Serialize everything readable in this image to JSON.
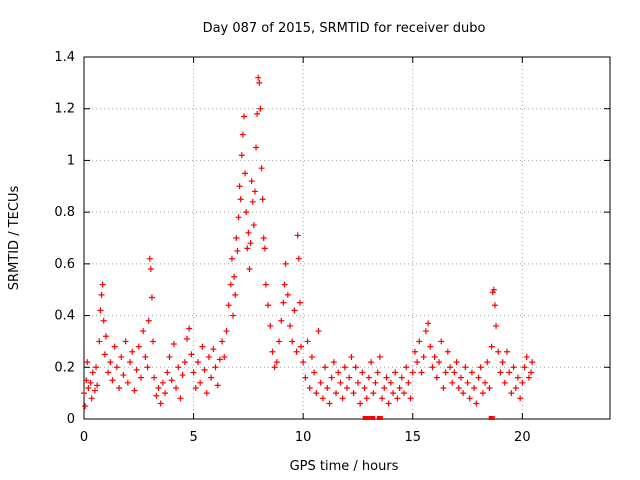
{
  "chart_data": {
    "type": "scatter",
    "title": "Day 087 of 2015, SRMTID for receiver dubo",
    "xlabel": "GPS time / hours",
    "ylabel": "SRMTID / TECUs",
    "xlim": [
      0,
      24
    ],
    "ylim": [
      0,
      1.4
    ],
    "xticks": [
      0,
      5,
      10,
      15,
      20
    ],
    "xtick_labels": [
      "0",
      "5",
      "10",
      "15",
      "20"
    ],
    "yticks": [
      0,
      0.2,
      0.4,
      0.6,
      0.8,
      1.0,
      1.2,
      1.4
    ],
    "ytick_labels": [
      "0",
      "0.2",
      "0.4",
      "0.6",
      "0.8",
      "1",
      "1.2",
      "1.4"
    ],
    "grid": true,
    "marker": "+",
    "series_color": "#ff0000",
    "series": [
      {
        "name": "SRMTID",
        "points": [
          [
            0.0,
            0.1
          ],
          [
            0.05,
            0.05
          ],
          [
            0.1,
            0.15
          ],
          [
            0.15,
            0.22
          ],
          [
            0.2,
            0.12
          ],
          [
            0.3,
            0.14
          ],
          [
            0.35,
            0.08
          ],
          [
            0.4,
            0.18
          ],
          [
            0.5,
            0.11
          ],
          [
            0.55,
            0.2
          ],
          [
            0.6,
            0.13
          ],
          [
            0.7,
            0.3
          ],
          [
            0.75,
            0.42
          ],
          [
            0.8,
            0.48
          ],
          [
            0.85,
            0.52
          ],
          [
            0.9,
            0.38
          ],
          [
            0.95,
            0.25
          ],
          [
            1.0,
            0.32
          ],
          [
            1.1,
            0.18
          ],
          [
            1.2,
            0.22
          ],
          [
            1.3,
            0.15
          ],
          [
            1.4,
            0.28
          ],
          [
            1.5,
            0.2
          ],
          [
            1.6,
            0.12
          ],
          [
            1.7,
            0.24
          ],
          [
            1.8,
            0.17
          ],
          [
            1.9,
            0.3
          ],
          [
            2.0,
            0.14
          ],
          [
            2.1,
            0.22
          ],
          [
            2.2,
            0.26
          ],
          [
            2.3,
            0.11
          ],
          [
            2.4,
            0.19
          ],
          [
            2.5,
            0.28
          ],
          [
            2.6,
            0.16
          ],
          [
            2.7,
            0.34
          ],
          [
            2.8,
            0.24
          ],
          [
            2.9,
            0.2
          ],
          [
            2.95,
            0.38
          ],
          [
            3.0,
            0.62
          ],
          [
            3.05,
            0.58
          ],
          [
            3.1,
            0.47
          ],
          [
            3.15,
            0.3
          ],
          [
            3.2,
            0.16
          ],
          [
            3.3,
            0.09
          ],
          [
            3.4,
            0.12
          ],
          [
            3.5,
            0.06
          ],
          [
            3.6,
            0.14
          ],
          [
            3.7,
            0.1
          ],
          [
            3.8,
            0.18
          ],
          [
            3.9,
            0.24
          ],
          [
            4.0,
            0.15
          ],
          [
            4.1,
            0.29
          ],
          [
            4.2,
            0.12
          ],
          [
            4.3,
            0.2
          ],
          [
            4.4,
            0.08
          ],
          [
            4.5,
            0.17
          ],
          [
            4.6,
            0.22
          ],
          [
            4.7,
            0.31
          ],
          [
            4.8,
            0.35
          ],
          [
            4.9,
            0.25
          ],
          [
            5.0,
            0.18
          ],
          [
            5.1,
            0.12
          ],
          [
            5.2,
            0.22
          ],
          [
            5.3,
            0.14
          ],
          [
            5.4,
            0.28
          ],
          [
            5.5,
            0.19
          ],
          [
            5.6,
            0.1
          ],
          [
            5.7,
            0.24
          ],
          [
            5.8,
            0.16
          ],
          [
            5.9,
            0.27
          ],
          [
            6.0,
            0.2
          ],
          [
            6.1,
            0.13
          ],
          [
            6.2,
            0.23
          ],
          [
            6.3,
            0.3
          ],
          [
            6.4,
            0.24
          ],
          [
            6.5,
            0.34
          ],
          [
            6.6,
            0.44
          ],
          [
            6.7,
            0.52
          ],
          [
            6.75,
            0.62
          ],
          [
            6.8,
            0.4
          ],
          [
            6.85,
            0.55
          ],
          [
            6.9,
            0.48
          ],
          [
            6.95,
            0.7
          ],
          [
            7.0,
            0.65
          ],
          [
            7.05,
            0.78
          ],
          [
            7.1,
            0.9
          ],
          [
            7.15,
            0.85
          ],
          [
            7.2,
            1.02
          ],
          [
            7.25,
            1.1
          ],
          [
            7.3,
            1.17
          ],
          [
            7.35,
            0.95
          ],
          [
            7.4,
            0.8
          ],
          [
            7.45,
            0.66
          ],
          [
            7.5,
            0.72
          ],
          [
            7.55,
            0.58
          ],
          [
            7.6,
            0.68
          ],
          [
            7.65,
            0.92
          ],
          [
            7.7,
            0.84
          ],
          [
            7.75,
            0.75
          ],
          [
            7.8,
            0.88
          ],
          [
            7.85,
            1.05
          ],
          [
            7.9,
            1.18
          ],
          [
            7.95,
            1.32
          ],
          [
            8.0,
            1.3
          ],
          [
            8.05,
            1.2
          ],
          [
            8.1,
            0.97
          ],
          [
            8.15,
            0.85
          ],
          [
            8.2,
            0.7
          ],
          [
            8.25,
            0.66
          ],
          [
            8.3,
            0.52
          ],
          [
            8.4,
            0.44
          ],
          [
            8.5,
            0.36
          ],
          [
            8.6,
            0.26
          ],
          [
            8.7,
            0.2
          ],
          [
            8.8,
            0.22
          ],
          [
            8.9,
            0.3
          ],
          [
            9.0,
            0.38
          ],
          [
            9.1,
            0.45
          ],
          [
            9.15,
            0.52
          ],
          [
            9.2,
            0.6
          ],
          [
            9.3,
            0.48
          ],
          [
            9.4,
            0.36
          ],
          [
            9.5,
            0.3
          ],
          [
            9.6,
            0.42
          ],
          [
            9.7,
            0.26
          ],
          [
            9.75,
            0.71
          ],
          [
            9.8,
            0.62
          ],
          [
            9.85,
            0.45
          ],
          [
            9.9,
            0.28
          ],
          [
            10.0,
            0.22
          ],
          [
            10.1,
            0.16
          ],
          [
            10.2,
            0.3
          ],
          [
            10.3,
            0.12
          ],
          [
            10.4,
            0.24
          ],
          [
            10.5,
            0.18
          ],
          [
            10.6,
            0.1
          ],
          [
            10.7,
            0.34
          ],
          [
            10.8,
            0.14
          ],
          [
            10.9,
            0.08
          ],
          [
            11.0,
            0.2
          ],
          [
            11.1,
            0.12
          ],
          [
            11.2,
            0.06
          ],
          [
            11.3,
            0.16
          ],
          [
            11.4,
            0.22
          ],
          [
            11.5,
            0.1
          ],
          [
            11.6,
            0.18
          ],
          [
            11.7,
            0.14
          ],
          [
            11.8,
            0.08
          ],
          [
            11.9,
            0.2
          ],
          [
            12.0,
            0.12
          ],
          [
            12.1,
            0.16
          ],
          [
            12.2,
            0.24
          ],
          [
            12.3,
            0.1
          ],
          [
            12.4,
            0.2
          ],
          [
            12.5,
            0.14
          ],
          [
            12.6,
            0.06
          ],
          [
            12.7,
            0.18
          ],
          [
            12.8,
            0.12
          ],
          [
            12.9,
            0.08
          ],
          [
            13.0,
            0.16
          ],
          [
            13.1,
            0.22
          ],
          [
            13.2,
            0.1
          ],
          [
            13.3,
            0.14
          ],
          [
            13.4,
            0.18
          ],
          [
            13.5,
            0.24
          ],
          [
            13.6,
            0.08
          ],
          [
            13.7,
            0.12
          ],
          [
            13.8,
            0.16
          ],
          [
            13.9,
            0.06
          ],
          [
            14.0,
            0.14
          ],
          [
            14.1,
            0.1
          ],
          [
            14.2,
            0.18
          ],
          [
            14.3,
            0.08
          ],
          [
            14.4,
            0.12
          ],
          [
            14.5,
            0.16
          ],
          [
            14.6,
            0.1
          ],
          [
            14.7,
            0.2
          ],
          [
            14.8,
            0.14
          ],
          [
            14.9,
            0.08
          ],
          [
            15.0,
            0.18
          ],
          [
            15.1,
            0.26
          ],
          [
            15.2,
            0.22
          ],
          [
            15.3,
            0.3
          ],
          [
            15.4,
            0.18
          ],
          [
            15.5,
            0.24
          ],
          [
            15.6,
            0.34
          ],
          [
            15.7,
            0.37
          ],
          [
            15.8,
            0.28
          ],
          [
            15.9,
            0.2
          ],
          [
            16.0,
            0.24
          ],
          [
            16.1,
            0.16
          ],
          [
            16.2,
            0.22
          ],
          [
            16.3,
            0.3
          ],
          [
            16.4,
            0.12
          ],
          [
            16.5,
            0.18
          ],
          [
            16.6,
            0.26
          ],
          [
            16.7,
            0.2
          ],
          [
            16.8,
            0.14
          ],
          [
            16.9,
            0.18
          ],
          [
            17.0,
            0.22
          ],
          [
            17.1,
            0.12
          ],
          [
            17.2,
            0.16
          ],
          [
            17.3,
            0.1
          ],
          [
            17.4,
            0.2
          ],
          [
            17.5,
            0.14
          ],
          [
            17.6,
            0.08
          ],
          [
            17.7,
            0.18
          ],
          [
            17.8,
            0.12
          ],
          [
            17.9,
            0.06
          ],
          [
            18.0,
            0.16
          ],
          [
            18.1,
            0.2
          ],
          [
            18.2,
            0.1
          ],
          [
            18.3,
            0.14
          ],
          [
            18.4,
            0.22
          ],
          [
            18.5,
            0.12
          ],
          [
            18.6,
            0.28
          ],
          [
            18.65,
            0.49
          ],
          [
            18.7,
            0.5
          ],
          [
            18.75,
            0.44
          ],
          [
            18.8,
            0.36
          ],
          [
            18.9,
            0.26
          ],
          [
            19.0,
            0.18
          ],
          [
            19.1,
            0.22
          ],
          [
            19.2,
            0.14
          ],
          [
            19.3,
            0.26
          ],
          [
            19.4,
            0.18
          ],
          [
            19.5,
            0.1
          ],
          [
            19.6,
            0.2
          ],
          [
            19.7,
            0.12
          ],
          [
            19.8,
            0.16
          ],
          [
            19.9,
            0.08
          ],
          [
            20.0,
            0.14
          ],
          [
            20.1,
            0.2
          ],
          [
            20.2,
            0.24
          ],
          [
            20.3,
            0.16
          ],
          [
            20.4,
            0.18
          ],
          [
            20.45,
            0.22
          ]
        ]
      }
    ],
    "extra_markers": [
      {
        "name": "zero-value-markers",
        "points": [
          [
            12.85,
            0.0
          ],
          [
            13.0,
            0.0
          ],
          [
            13.15,
            0.0
          ],
          [
            13.5,
            0.0
          ],
          [
            18.6,
            0.0
          ]
        ]
      }
    ]
  }
}
